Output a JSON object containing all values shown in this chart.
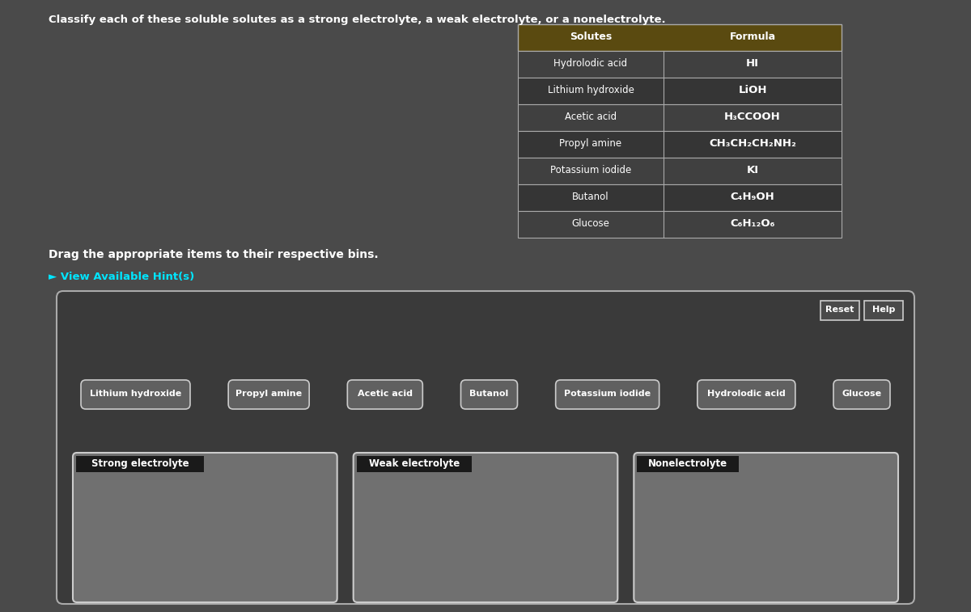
{
  "bg_color": "#4a4a4a",
  "title_text": "Classify each of these soluble solutes as a strong electrolyte, a weak electrolyte, or a nonelectrolyte.",
  "title_color": "#ffffff",
  "title_fontsize": 9.5,
  "drag_text": "Drag the appropriate items to their respective bins.",
  "drag_fontsize": 10,
  "hint_text": "► View Available Hint(s)",
  "hint_color": "#00e5ff",
  "hint_fontsize": 9.5,
  "table_header_bg": "#5a4a10",
  "table_data_bg": "#3a3a3a",
  "table_border_color": "#aaaaaa",
  "table_header_text": [
    "Solutes",
    "Formula"
  ],
  "table_rows": [
    [
      "Hydrolodic acid",
      "HI"
    ],
    [
      "Lithium hydroxide",
      "LiOH"
    ],
    [
      "Acetic acid",
      "H₃CCOOH"
    ],
    [
      "Propyl amine",
      "CH₃CH₂CH₂NH₂"
    ],
    [
      "Potassium iodide",
      "KI"
    ],
    [
      "Butanol",
      "C₄H₉OH"
    ],
    [
      "Glucose",
      "C₆H₁₂O₆"
    ]
  ],
  "interactive_box_bg": "#3a3a3a",
  "interactive_box_border": "#aaaaaa",
  "button_bg": "#555555",
  "button_border": "#cccccc",
  "button_text_color": "#ffffff",
  "solute_buttons": [
    "Lithium hydroxide",
    "Propyl amine",
    "Acetic acid",
    "Butanol",
    "Potassium iodide",
    "Hydrolodic acid",
    "Glucose"
  ],
  "bin_labels": [
    "Strong electrolyte",
    "Weak electrolyte",
    "Nonelectrolyte"
  ],
  "bin_label_bg": "#222222",
  "reset_help_buttons": [
    "Reset",
    "Help"
  ],
  "bin_box_bg": "#808080",
  "bin_box_border": "#cccccc"
}
